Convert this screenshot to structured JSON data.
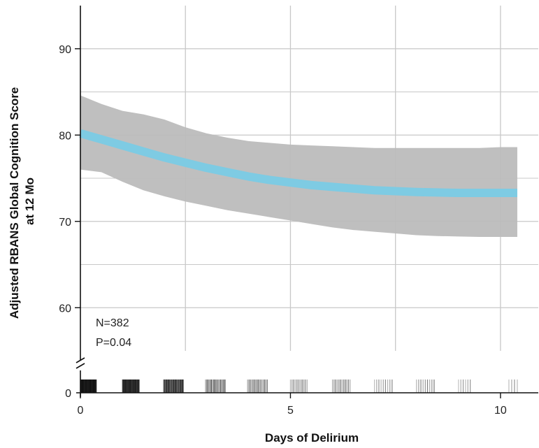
{
  "chart_data": {
    "type": "line",
    "xlabel": "Days of Delirium",
    "ylabel_lines": [
      "Adjusted RBANS Global Cognition Score",
      "at 12 Mo"
    ],
    "xlim": [
      0,
      10.9
    ],
    "ylim": [
      55,
      95
    ],
    "x_ticks": [
      0,
      5,
      10
    ],
    "x_minor_grid": [
      2.5,
      7.5
    ],
    "y_ticks": [
      60,
      70,
      80,
      90
    ],
    "y_minor_grid": [
      65,
      75,
      85
    ],
    "y_extra_tick": {
      "value": 0,
      "label": "0"
    },
    "axis_break": true,
    "grid": true,
    "series": [
      {
        "x": [
          0,
          0.5,
          1,
          1.5,
          2,
          2.5,
          3,
          3.5,
          4,
          4.5,
          5,
          5.5,
          6,
          6.5,
          7,
          7.5,
          8,
          8.5,
          9,
          9.5,
          10,
          10.4
        ],
        "y": [
          80.2,
          79.5,
          78.8,
          78.1,
          77.4,
          76.8,
          76.2,
          75.7,
          75.2,
          74.8,
          74.5,
          74.2,
          74.0,
          73.8,
          73.6,
          73.5,
          73.4,
          73.35,
          73.3,
          73.3,
          73.3,
          73.3
        ],
        "lower": [
          76.0,
          75.7,
          74.6,
          73.6,
          72.9,
          72.3,
          71.8,
          71.3,
          70.9,
          70.5,
          70.1,
          69.7,
          69.3,
          69.0,
          68.8,
          68.6,
          68.4,
          68.3,
          68.25,
          68.2,
          68.2,
          68.2
        ],
        "upper": [
          84.6,
          83.6,
          82.8,
          82.4,
          81.8,
          80.9,
          80.2,
          79.7,
          79.3,
          79.1,
          78.9,
          78.8,
          78.7,
          78.6,
          78.5,
          78.5,
          78.5,
          78.5,
          78.5,
          78.5,
          78.6,
          78.6
        ],
        "line_color": "#7ecbe3",
        "band_color": "#bcbcbc"
      }
    ],
    "rug": {
      "clusters": [
        {
          "start": 0,
          "end": 0.38,
          "count": 48,
          "shade": "#111111"
        },
        {
          "start": 1.0,
          "end": 1.4,
          "count": 40,
          "shade": "#1a1a1a"
        },
        {
          "start": 1.98,
          "end": 2.45,
          "count": 32,
          "shade": "#262626"
        },
        {
          "start": 2.98,
          "end": 3.45,
          "count": 18,
          "shade": "#4a4a4a"
        },
        {
          "start": 3.98,
          "end": 4.45,
          "count": 16,
          "shade": "#5a5a5a"
        },
        {
          "start": 5.0,
          "end": 5.4,
          "count": 12,
          "shade": "#7a7a7a"
        },
        {
          "start": 6.0,
          "end": 6.42,
          "count": 12,
          "shade": "#6a6a6a"
        },
        {
          "start": 7.0,
          "end": 7.42,
          "count": 9,
          "shade": "#888888"
        },
        {
          "start": 8.0,
          "end": 8.42,
          "count": 9,
          "shade": "#7a7a7a"
        },
        {
          "start": 9.0,
          "end": 9.28,
          "count": 6,
          "shade": "#909090"
        },
        {
          "start": 10.2,
          "end": 10.4,
          "count": 4,
          "shade": "#8a8a8a"
        }
      ]
    },
    "annotations": [
      "N=382",
      "P=0.04"
    ],
    "colors": {
      "grid": "#c8c8c8",
      "axis": "#111111"
    }
  }
}
